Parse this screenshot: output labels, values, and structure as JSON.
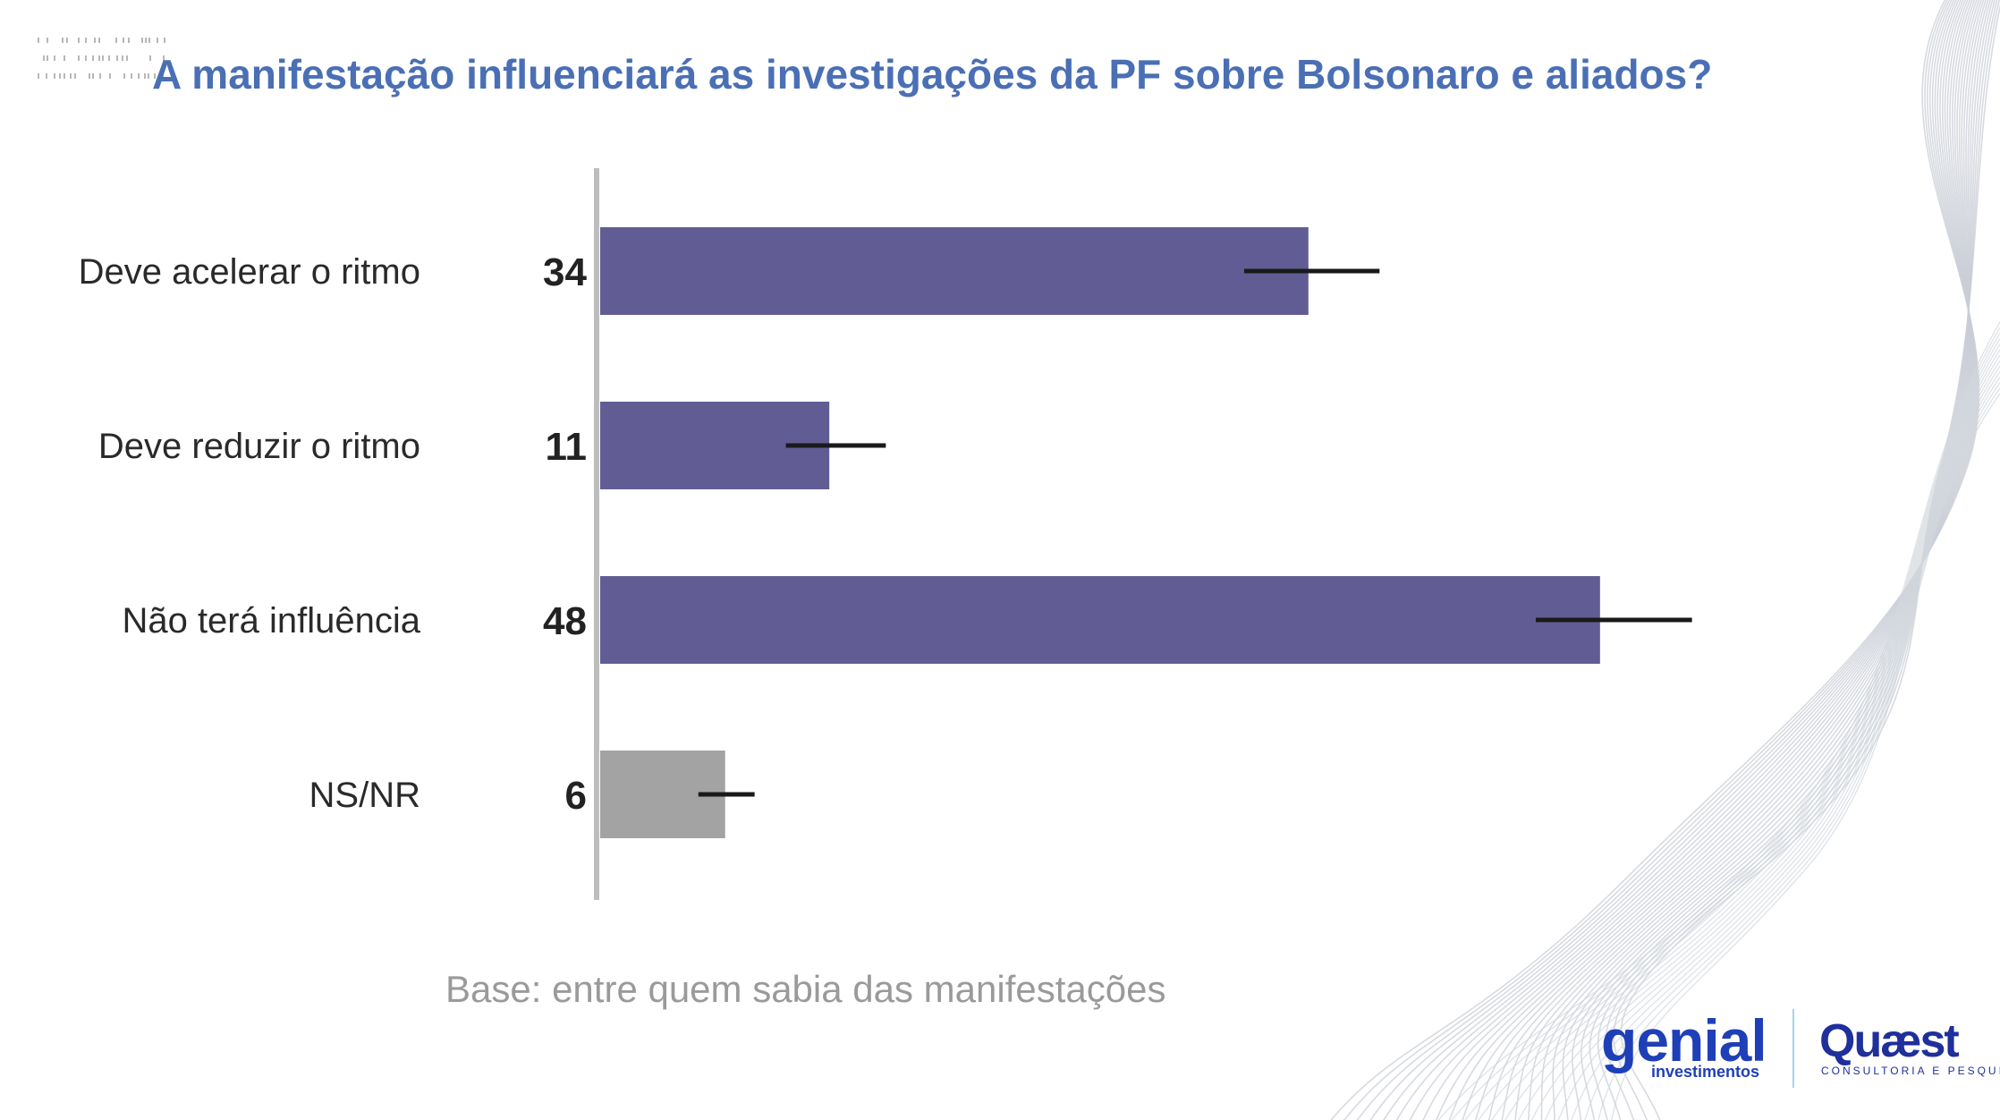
{
  "title": "A manifestação influenciará as investigações da PF sobre Bolsonaro e aliados?",
  "note": "Base: entre quem sabia das manifestações",
  "logos": {
    "genial": "genial",
    "genial_sub": "investimentos",
    "quaest": "Quæst",
    "quaest_sub": "CONSULTORIA E PESQUISA"
  },
  "colors": {
    "title": "#4a6fb5",
    "bar": "#615d94",
    "bar_other": "#a3a3a3",
    "error_bar": "#1a1a1a",
    "axis": "#bdbdbd"
  },
  "chart_data": {
    "type": "bar",
    "orientation": "horizontal",
    "categories": [
      "Deve acelerar o ritmo",
      "Deve reduzir o ritmo",
      "Não terá influência",
      "NS/NR"
    ],
    "values": [
      34,
      11,
      48,
      6
    ],
    "error_bars": [
      [
        31,
        37.5
      ],
      [
        9,
        13.8
      ],
      [
        45,
        52.5
      ],
      [
        4.8,
        7.5
      ]
    ],
    "bar_colors": [
      "#615d94",
      "#615d94",
      "#615d94",
      "#a3a3a3"
    ],
    "xlim": [
      0,
      52
    ],
    "grid": false,
    "legend": "none"
  }
}
